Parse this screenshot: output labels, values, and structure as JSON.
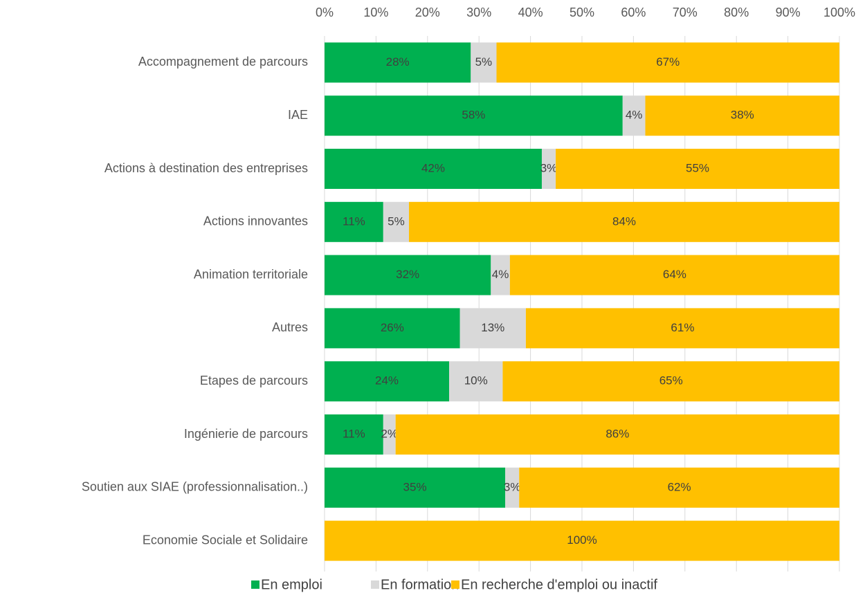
{
  "chart_data": {
    "type": "bar",
    "orientation": "horizontal",
    "stacked": true,
    "categories": [
      "Accompagnement de parcours",
      "IAE",
      "Actions à destination des entreprises",
      "Actions innovantes",
      "Animation territoriale",
      "Autres",
      "Etapes de parcours",
      "Ingénierie de parcours",
      "Soutien aux SIAE (professionnalisation..)",
      "Economie Sociale et Solidaire"
    ],
    "series": [
      {
        "name": "En emploi",
        "color": "#00b050",
        "values": [
          28.4,
          57.9,
          42.2,
          11.4,
          32.3,
          26.3,
          24.2,
          11.4,
          35.1,
          0
        ],
        "value_labels": [
          "28%",
          "58%",
          "42%",
          "11%",
          "32%",
          "26%",
          "24%",
          "11%",
          "35%",
          null
        ]
      },
      {
        "name": "En formation",
        "color": "#d9d9d9",
        "values": [
          5.0,
          4.4,
          2.7,
          5.0,
          3.7,
          12.8,
          10.4,
          2.4,
          2.7,
          0
        ],
        "value_labels": [
          "5%",
          "4%",
          "3%",
          "5%",
          "4%",
          "13%",
          "10%",
          "2%",
          "3%",
          null
        ]
      },
      {
        "name": "En recherche d'emploi ou inactif",
        "color": "#ffc000",
        "values": [
          66.6,
          37.7,
          55.1,
          83.6,
          64.0,
          60.9,
          65.4,
          86.2,
          62.2,
          100
        ],
        "value_labels": [
          "67%",
          "38%",
          "55%",
          "84%",
          "64%",
          "61%",
          "65%",
          "86%",
          "62%",
          "100%"
        ]
      }
    ],
    "xlim": [
      0,
      100
    ],
    "xticks": [
      {
        "value": 0,
        "label": "0%"
      },
      {
        "value": 10,
        "label": "10%"
      },
      {
        "value": 20,
        "label": "20%"
      },
      {
        "value": 30,
        "label": "30%"
      },
      {
        "value": 40,
        "label": "40%"
      },
      {
        "value": 50,
        "label": "50%"
      },
      {
        "value": 60,
        "label": "60%"
      },
      {
        "value": 70,
        "label": "70%"
      },
      {
        "value": 80,
        "label": "80%"
      },
      {
        "value": 90,
        "label": "90%"
      },
      {
        "value": 100,
        "label": "100%"
      }
    ],
    "grid": true,
    "legend": "bottom"
  }
}
